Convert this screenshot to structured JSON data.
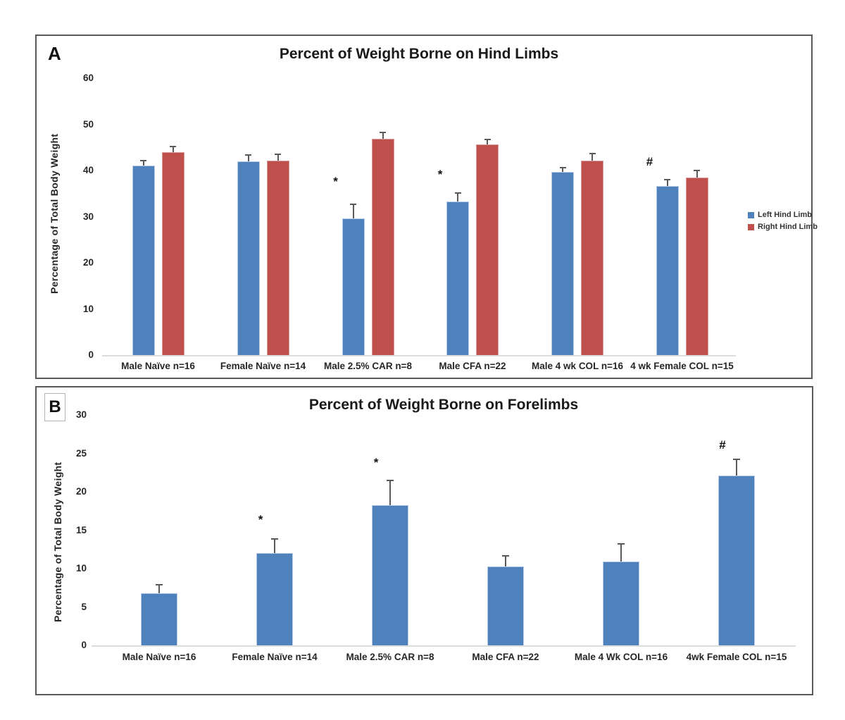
{
  "figure": {
    "background": "#ffffff",
    "panel_border_color": "#595959",
    "axis_line_color": "#dcdcdc",
    "error_bar_color": "#595959",
    "text_color": "#1a1a1a"
  },
  "chart_data": [
    {
      "type": "bar",
      "panel_label": "A",
      "title": "Percent of Weight Borne on Hind Limbs",
      "xlabel": "",
      "ylabel": "Percentage of Total Body Weight",
      "ylim": [
        0,
        60
      ],
      "yticks": [
        0,
        10,
        20,
        30,
        40,
        50,
        60
      ],
      "grid": false,
      "legend_position": "right",
      "show_legend": true,
      "categories": [
        "Male Naïve n=16",
        "Female Naïve n=14",
        "Male 2.5% CAR n=8",
        "Male CFA n=22",
        "Male 4 wk COL n=16",
        "4 wk Female COL n=15"
      ],
      "series": [
        {
          "name": "Left Hind Limb",
          "color": "#4F81BD",
          "border_color": "#b9cbe5",
          "values": [
            41,
            42,
            29.6,
            33.3,
            39.7,
            36.7
          ],
          "errors": [
            1.3,
            1.5,
            3.2,
            1.9,
            1.1,
            1.4
          ]
        },
        {
          "name": "Right Hind Limb",
          "color": "#C0504D",
          "border_color": "#d99b99",
          "values": [
            44,
            42.2,
            46.9,
            45.7,
            42.1,
            38.4
          ],
          "errors": [
            1.3,
            1.4,
            1.5,
            1.1,
            1.7,
            1.8
          ]
        }
      ],
      "annotations": [
        {
          "category_index": 2,
          "symbol": "*",
          "y": 38
        },
        {
          "category_index": 3,
          "symbol": "*",
          "y": 39.5
        },
        {
          "category_index": 5,
          "symbol": "#",
          "y": 42.3
        }
      ]
    },
    {
      "type": "bar",
      "panel_label": "B",
      "title": "Percent of Weight Borne on Forelimbs",
      "xlabel": "",
      "ylabel": "Percentage of Total Body Weight",
      "ylim": [
        0,
        30
      ],
      "yticks": [
        0,
        5,
        10,
        15,
        20,
        25,
        30
      ],
      "grid": false,
      "show_legend": false,
      "categories": [
        "Male Naïve n=16",
        "Female Naïve n=14",
        "Male 2.5% CAR n=8",
        "Male CFA n=22",
        "Male 4 Wk COL n=16",
        "4wk Female COL n=15"
      ],
      "series": [
        {
          "color": "#4F81BD",
          "border_color": "#b9cbe5",
          "values": [
            6.8,
            12.0,
            18.3,
            10.3,
            10.9,
            22.1
          ],
          "errors": [
            1.2,
            1.9,
            3.3,
            1.4,
            2.4,
            2.2
          ]
        }
      ],
      "annotations": [
        {
          "category_index": 1,
          "symbol": "*",
          "y": 16.6
        },
        {
          "category_index": 2,
          "symbol": "*",
          "y": 24.0
        },
        {
          "category_index": 5,
          "symbol": "#",
          "y": 26.3
        }
      ]
    }
  ]
}
